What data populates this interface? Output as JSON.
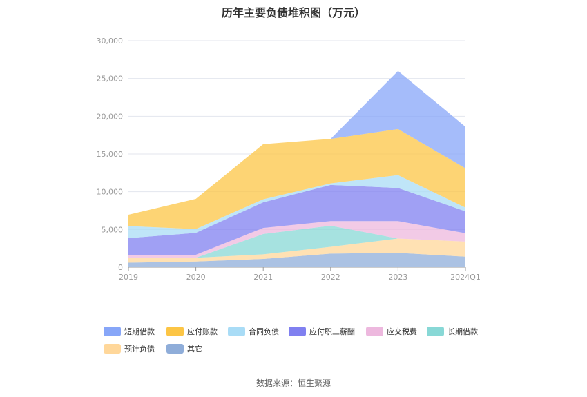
{
  "title": "历年主要负债堆积图（万元）",
  "source_text": "数据来源：恒生聚源",
  "chart_data": {
    "type": "area",
    "stacked": true,
    "categories": [
      "2019",
      "2020",
      "2021",
      "2022",
      "2023",
      "2024Q1"
    ],
    "ylim": [
      0,
      30000
    ],
    "yticks": [
      0,
      5000,
      10000,
      15000,
      20000,
      25000,
      30000
    ],
    "ytick_labels": [
      "0",
      "5,000",
      "10,000",
      "15,000",
      "20,000",
      "25,000",
      "30,000"
    ],
    "grid": true,
    "legend_position": "bottom",
    "series": [
      {
        "name": "其它",
        "color": "#8fadd9",
        "values": [
          600,
          750,
          1100,
          1800,
          1900,
          1400
        ]
      },
      {
        "name": "预计负债",
        "color": "#ffd79a",
        "values": [
          600,
          500,
          600,
          900,
          1900,
          2000
        ]
      },
      {
        "name": "长期借款",
        "color": "#88d8d6",
        "values": [
          0,
          0,
          2700,
          2800,
          0,
          0
        ]
      },
      {
        "name": "应交税费",
        "color": "#edb8de",
        "values": [
          350,
          400,
          800,
          600,
          2300,
          1100
        ]
      },
      {
        "name": "应付职工薪酬",
        "color": "#8080f0",
        "values": [
          2300,
          2900,
          3400,
          4800,
          4400,
          2900
        ]
      },
      {
        "name": "合同负债",
        "color": "#a9dcf6",
        "values": [
          1600,
          500,
          400,
          200,
          1700,
          500
        ]
      },
      {
        "name": "应付账款",
        "color": "#fcc545",
        "values": [
          1500,
          4000,
          7300,
          5900,
          6100,
          5200
        ]
      },
      {
        "name": "短期借款",
        "color": "#87a6f8",
        "values": [
          0,
          0,
          0,
          0,
          7700,
          5500
        ]
      }
    ]
  }
}
